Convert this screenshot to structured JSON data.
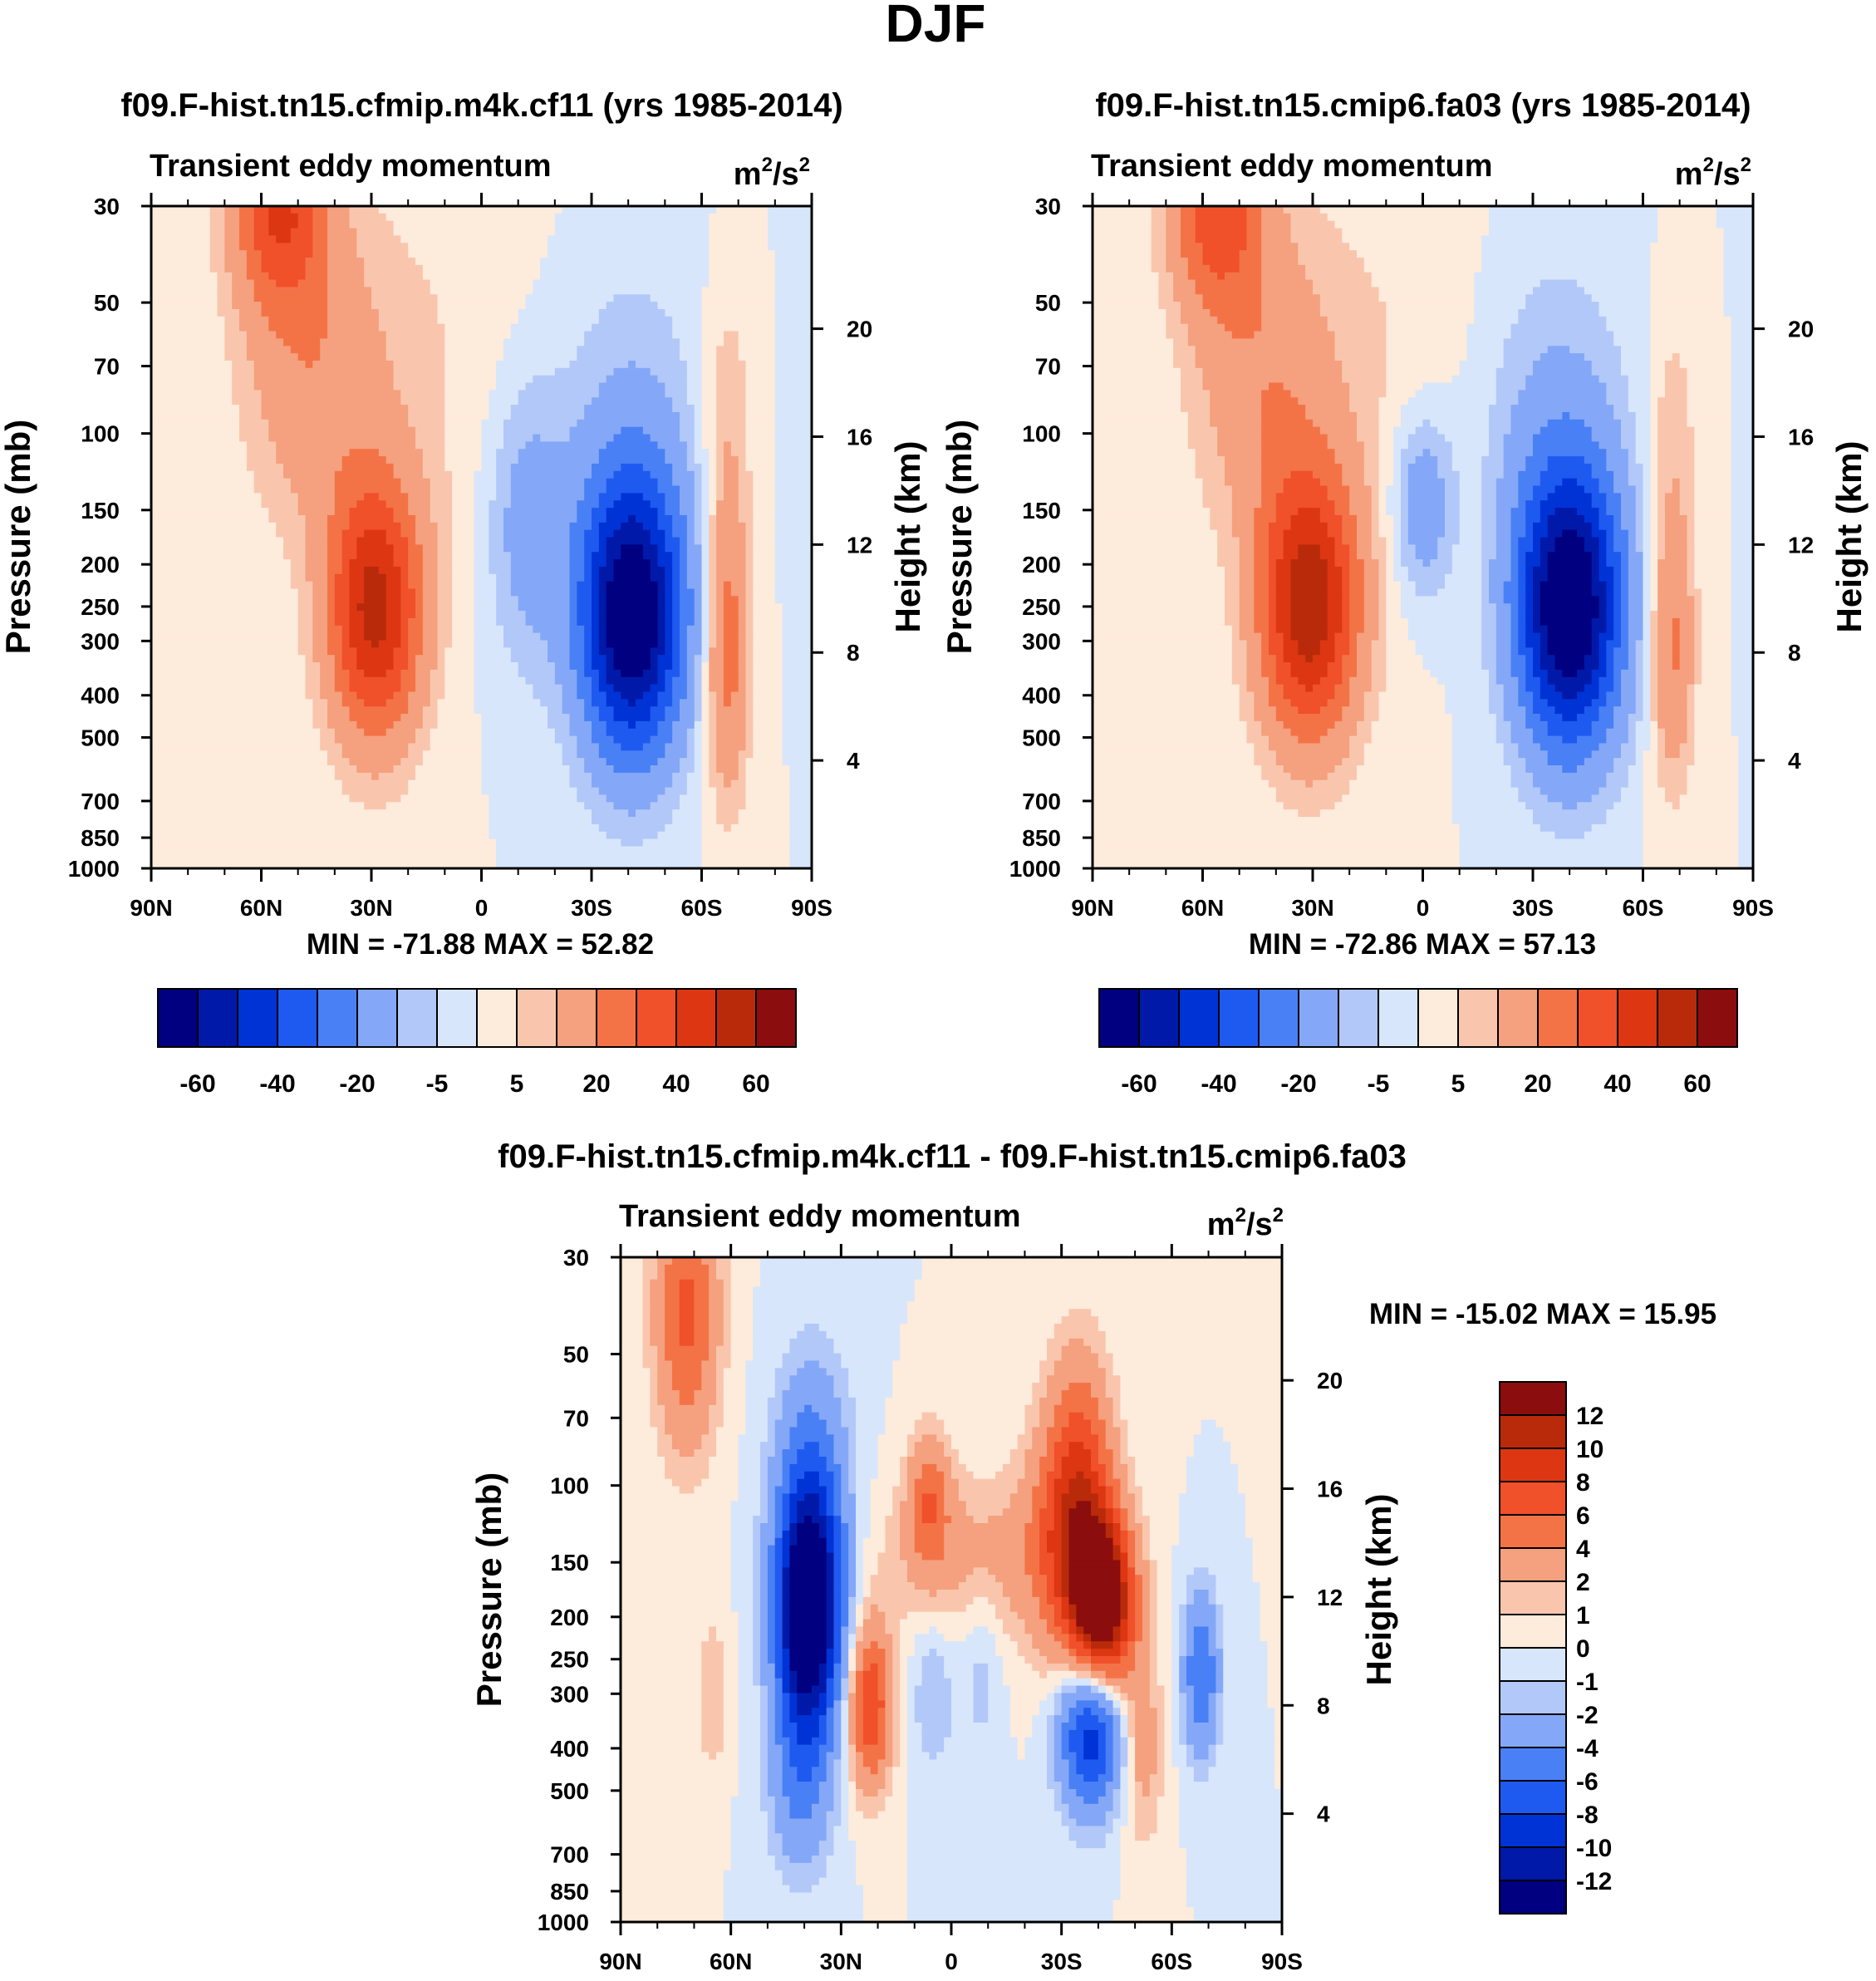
{
  "figure": {
    "title": "DJF"
  },
  "palettes": {
    "main": [
      "#000080",
      "#0019a8",
      "#0033d6",
      "#1f5af0",
      "#4a80f5",
      "#84a8f7",
      "#b2c8f9",
      "#d7e6fb",
      "#fdebdc",
      "#f9c6ad",
      "#f5a07e",
      "#f37347",
      "#f0502a",
      "#dc3712",
      "#b92a0b",
      "#8c0d0d"
    ],
    "diff": [
      "#000080",
      "#0019a8",
      "#0033d6",
      "#1f5af0",
      "#4a80f5",
      "#84a8f7",
      "#b2c8f9",
      "#d7e6fb",
      "#fdebdc",
      "#f9c6ad",
      "#f5a07e",
      "#f37347",
      "#f0502a",
      "#dc3712",
      "#b92a0b",
      "#8c0d0d"
    ]
  },
  "chart_data": [
    {
      "id": "p1",
      "type": "heatmap",
      "title": "f09.F-hist.tn15.cfmip.m4k.cf11 (yrs 1985-2014)",
      "left_string": "Transient eddy momentum",
      "units_base": "m",
      "units_exp1": "2",
      "units_mid": "/s",
      "units_exp2": "2",
      "xlabel": "",
      "ylabel": "Pressure (mb)",
      "ylabel_right": "Height (km)",
      "x_range": [
        90,
        -90
      ],
      "y_range_mb": [
        1000,
        30
      ],
      "x_ticks": [
        90,
        60,
        30,
        0,
        -30,
        -60,
        -90
      ],
      "x_tick_labels": [
        "90N",
        "60N",
        "30N",
        "0",
        "30S",
        "60S",
        "90S"
      ],
      "y_ticks": [
        30,
        50,
        70,
        100,
        150,
        200,
        250,
        300,
        400,
        500,
        700,
        850,
        1000
      ],
      "y_tick_labels": [
        "30",
        "50",
        "70",
        "100",
        "150",
        "200",
        "250",
        "300",
        "400",
        "500",
        "700",
        "850",
        "1000"
      ],
      "height_ticks_km": [
        4,
        8,
        12,
        16,
        20
      ],
      "height_tick_labels": [
        "4",
        "8",
        "12",
        "16",
        "20"
      ],
      "min_max_text": "MIN = -71.88  MAX =  52.82",
      "min": -71.88,
      "max": 52.82,
      "contour_levels": [
        -70,
        -60,
        -50,
        -40,
        -30,
        -20,
        -10,
        -5,
        0,
        5,
        10,
        20,
        30,
        40,
        50,
        60,
        70
      ],
      "colorbar": {
        "orientation": "horizontal",
        "tick_labels": [
          "-60",
          "-40",
          "-20",
          "-5",
          "5",
          "20",
          "40",
          "60"
        ]
      },
      "features": [
        {
          "lat": 29,
          "p": 255,
          "amp": 52.8,
          "sx": 9,
          "sy": 0.48
        },
        {
          "lat": -41,
          "p": 265,
          "amp": -71.9,
          "sx": 10,
          "sy": 0.52
        },
        {
          "lat": 55,
          "p": 30,
          "amp": 38,
          "sx": 9,
          "sy": 0.38
        },
        {
          "lat": 46,
          "p": 72,
          "amp": 15,
          "sx": 13,
          "sy": 0.55
        },
        {
          "lat": 18,
          "p": 70,
          "amp": 5,
          "sx": 26,
          "sy": 0.9
        },
        {
          "lat": -67,
          "p": 310,
          "amp": 26,
          "sx": 4.2,
          "sy": 0.55
        },
        {
          "lat": -67,
          "p": 90,
          "amp": 9,
          "sx": 5,
          "sy": 0.5
        },
        {
          "lat": -12,
          "p": 160,
          "amp": -14,
          "sx": 8,
          "sy": 0.55
        },
        {
          "lat": -40,
          "p": 100,
          "amp": -9,
          "sx": 15,
          "sy": 0.7
        },
        {
          "lat": 83,
          "p": 800,
          "amp": 4,
          "sx": 3,
          "sy": 0.4
        },
        {
          "lat": 62,
          "p": 850,
          "amp": 4,
          "sx": 3,
          "sy": 0.35
        }
      ]
    },
    {
      "id": "p2",
      "type": "heatmap",
      "title": "f09.F-hist.tn15.cmip6.fa03 (yrs 1985-2014)",
      "left_string": "Transient eddy momentum",
      "units_base": "m",
      "units_exp1": "2",
      "units_mid": "/s",
      "units_exp2": "2",
      "xlabel": "",
      "ylabel": "Pressure (mb)",
      "ylabel_right": "Height (km)",
      "x_range": [
        90,
        -90
      ],
      "y_range_mb": [
        1000,
        30
      ],
      "x_ticks": [
        90,
        60,
        30,
        0,
        -30,
        -60,
        -90
      ],
      "x_tick_labels": [
        "90N",
        "60N",
        "30N",
        "0",
        "30S",
        "60S",
        "90S"
      ],
      "y_ticks": [
        30,
        50,
        70,
        100,
        150,
        200,
        250,
        300,
        400,
        500,
        700,
        850,
        1000
      ],
      "y_tick_labels": [
        "30",
        "50",
        "70",
        "100",
        "150",
        "200",
        "250",
        "300",
        "400",
        "500",
        "700",
        "850",
        "1000"
      ],
      "height_ticks_km": [
        4,
        8,
        12,
        16,
        20
      ],
      "height_tick_labels": [
        "4",
        "8",
        "12",
        "16",
        "20"
      ],
      "min_max_text": "MIN = -72.86  MAX =  57.13",
      "min": -72.86,
      "max": 57.13,
      "contour_levels": [
        -70,
        -60,
        -50,
        -40,
        -30,
        -20,
        -10,
        -5,
        0,
        5,
        10,
        20,
        30,
        40,
        50,
        60,
        70
      ],
      "colorbar": {
        "orientation": "horizontal",
        "tick_labels": [
          "-60",
          "-40",
          "-20",
          "-5",
          "5",
          "20",
          "40",
          "60"
        ]
      },
      "features": [
        {
          "lat": 31,
          "p": 250,
          "amp": 57.1,
          "sx": 9.5,
          "sy": 0.5
        },
        {
          "lat": -40,
          "p": 255,
          "amp": -72.9,
          "sx": 10,
          "sy": 0.52
        },
        {
          "lat": 56,
          "p": 30,
          "amp": 36,
          "sx": 9,
          "sy": 0.38
        },
        {
          "lat": 44,
          "p": 75,
          "amp": 15,
          "sx": 13,
          "sy": 0.55
        },
        {
          "lat": 15,
          "p": 70,
          "amp": 5,
          "sx": 26,
          "sy": 0.9
        },
        {
          "lat": -68,
          "p": 310,
          "amp": 22,
          "sx": 4.2,
          "sy": 0.5
        },
        {
          "lat": -68,
          "p": 100,
          "amp": 8,
          "sx": 5,
          "sy": 0.5
        },
        {
          "lat": 0,
          "p": 145,
          "amp": -18,
          "sx": 6,
          "sy": 0.35
        },
        {
          "lat": -35,
          "p": 100,
          "amp": -11,
          "sx": 15,
          "sy": 0.7
        },
        {
          "lat": 82,
          "p": 550,
          "amp": 4,
          "sx": 3,
          "sy": 0.5
        },
        {
          "lat": 64,
          "p": 650,
          "amp": 4,
          "sx": 3,
          "sy": 0.4
        }
      ]
    },
    {
      "id": "p3",
      "type": "heatmap",
      "title": "f09.F-hist.tn15.cfmip.m4k.cf11 - f09.F-hist.tn15.cmip6.fa03",
      "left_string": "Transient eddy momentum",
      "units_base": "m",
      "units_exp1": "2",
      "units_mid": "/s",
      "units_exp2": "2",
      "xlabel": "",
      "ylabel": "Pressure (mb)",
      "ylabel_right": "Height (km)",
      "x_range": [
        90,
        -90
      ],
      "y_range_mb": [
        1000,
        30
      ],
      "x_ticks": [
        90,
        60,
        30,
        0,
        -30,
        -60,
        -90
      ],
      "x_tick_labels": [
        "90N",
        "60N",
        "30N",
        "0",
        "30S",
        "60S",
        "90S"
      ],
      "y_ticks": [
        30,
        50,
        70,
        100,
        150,
        200,
        250,
        300,
        400,
        500,
        700,
        850,
        1000
      ],
      "y_tick_labels": [
        "30",
        "50",
        "70",
        "100",
        "150",
        "200",
        "250",
        "300",
        "400",
        "500",
        "700",
        "850",
        "1000"
      ],
      "height_ticks_km": [
        4,
        8,
        12,
        16,
        20
      ],
      "height_tick_labels": [
        "4",
        "8",
        "12",
        "16",
        "20"
      ],
      "min_max_text": "MIN = -15.02  MAX =  15.95",
      "min": -15.02,
      "max": 15.95,
      "contour_levels": [
        -14,
        -12,
        -10,
        -8,
        -6,
        -4,
        -2,
        -1,
        0,
        1,
        2,
        4,
        6,
        8,
        10,
        12,
        14
      ],
      "colorbar": {
        "orientation": "vertical",
        "tick_labels": [
          "12",
          "10",
          "8",
          "6",
          "4",
          "2",
          "1",
          "0",
          "-1",
          "-2",
          "-4",
          "-6",
          "-8",
          "-10",
          "-12"
        ]
      },
      "features": [
        {
          "lat": 39,
          "p": 205,
          "amp": -15.0,
          "sx": 6,
          "sy": 0.42
        },
        {
          "lat": 38,
          "p": 110,
          "amp": -6,
          "sx": 7,
          "sy": 0.5
        },
        {
          "lat": 41,
          "p": 480,
          "amp": -4,
          "sx": 6,
          "sy": 0.35
        },
        {
          "lat": 22,
          "p": 320,
          "amp": 8,
          "sx": 4,
          "sy": 0.3
        },
        {
          "lat": 72,
          "p": 40,
          "amp": 6.5,
          "sx": 6,
          "sy": 0.5
        },
        {
          "lat": 65,
          "p": 300,
          "amp": 2,
          "sx": 3,
          "sy": 0.3
        },
        {
          "lat": -41,
          "p": 190,
          "amp": 15.9,
          "sx": 6,
          "sy": 0.32
        },
        {
          "lat": -32,
          "p": 135,
          "amp": 6,
          "sx": 8,
          "sy": 0.45
        },
        {
          "lat": -35,
          "p": 90,
          "amp": 5,
          "sx": 6,
          "sy": 0.45
        },
        {
          "lat": -52,
          "p": 400,
          "amp": 3,
          "sx": 4,
          "sy": 0.35
        },
        {
          "lat": 6,
          "p": 108,
          "amp": 5,
          "sx": 4,
          "sy": 0.25
        },
        {
          "lat": -5,
          "p": 145,
          "amp": 2.5,
          "sx": 18,
          "sy": 0.3
        },
        {
          "lat": -38,
          "p": 355,
          "amp": -10.5,
          "sx": 6,
          "sy": 0.3
        },
        {
          "lat": -68,
          "p": 270,
          "amp": -6,
          "sx": 3.5,
          "sy": 0.3
        },
        {
          "lat": 5,
          "p": 300,
          "amp": -2,
          "sx": 4,
          "sy": 0.3
        },
        {
          "lat": -8,
          "p": 260,
          "amp": -1.5,
          "sx": 4,
          "sy": 0.35
        }
      ]
    }
  ]
}
